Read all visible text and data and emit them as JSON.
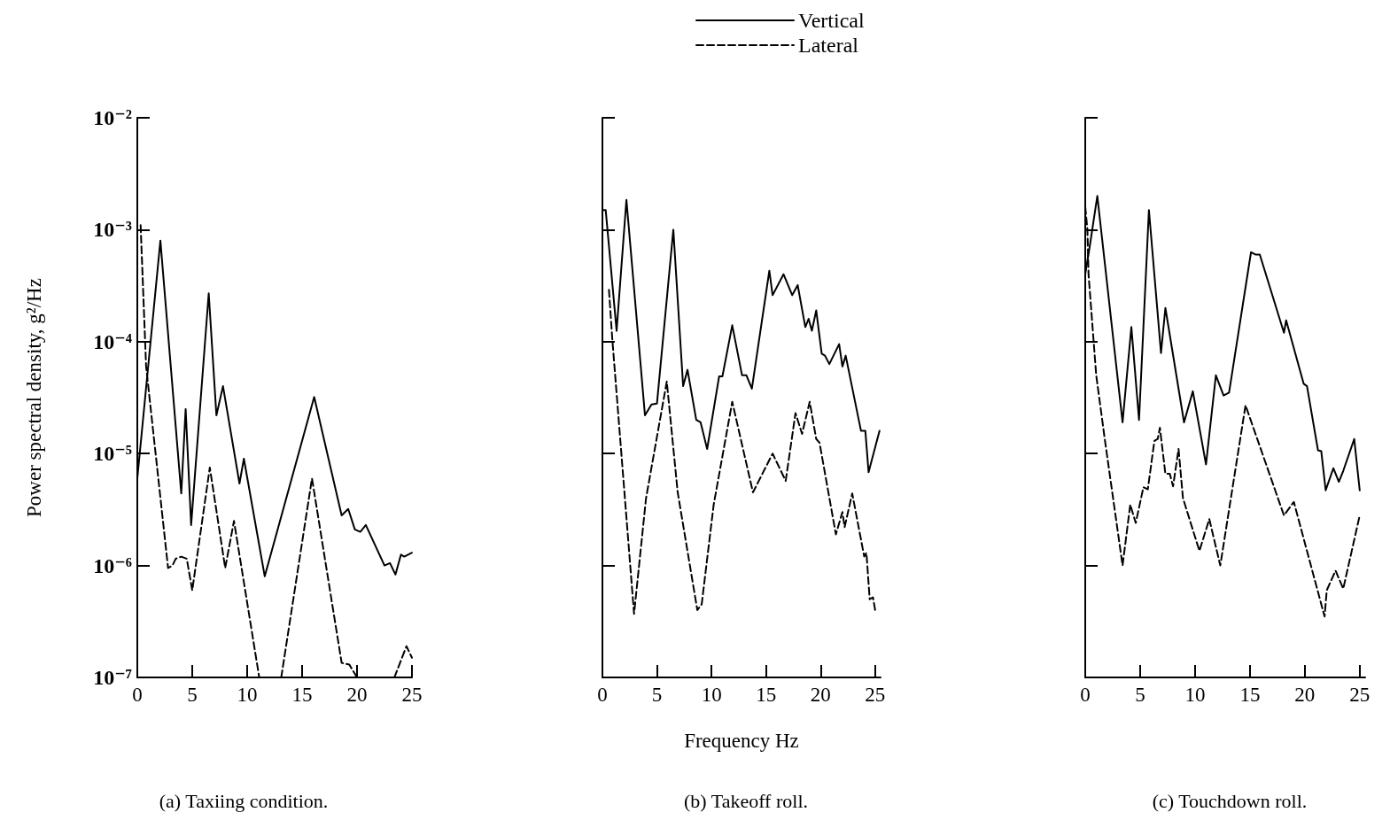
{
  "chart_data": [
    {
      "type": "line",
      "title": "(a) Taxiing condition.",
      "ylabel": "Power spectral density, g²/Hz",
      "log": "y",
      "grid": false,
      "legend": false,
      "marker": "none",
      "xlim": [
        0,
        25
      ],
      "xticks": [
        0,
        5,
        10,
        15,
        20,
        25
      ],
      "ylim": [
        1e-07,
        0.01
      ],
      "yticks": [
        {
          "value": 1e-07,
          "label": "10⁻⁷"
        },
        {
          "value": 1e-06,
          "label": "10⁻⁶"
        },
        {
          "value": 1e-05,
          "label": "10⁻⁵"
        },
        {
          "value": 0.0001,
          "label": "10⁻⁴"
        },
        {
          "value": 0.001,
          "label": "10⁻³"
        },
        {
          "value": 0.01,
          "label": "10⁻²"
        }
      ],
      "series": [
        {
          "color": "#000000",
          "line_style": "solid",
          "x": [
            0,
            2.1,
            4.0,
            4.4,
            4.9,
            6.5,
            7.2,
            7.8,
            9.3,
            9.7,
            11.6,
            16.1,
            18.6,
            19.2,
            19.8,
            20.3,
            20.8,
            22.5,
            23.0,
            23.5,
            24.0,
            24.3,
            25
          ],
          "values": [
            6e-06,
            0.0008,
            4.4e-06,
            2.5e-05,
            2.3e-06,
            0.00027,
            2.2e-05,
            4e-05,
            5.4e-06,
            9e-06,
            8e-07,
            3.2e-05,
            2.8e-06,
            3.2e-06,
            2.1e-06,
            2e-06,
            2.3e-06,
            1e-06,
            1.05e-06,
            8.3e-07,
            1.25e-06,
            1.2e-06,
            1.3e-06
          ]
        },
        {
          "color": "#000000",
          "line_style": "dashed",
          "x": [
            0.3,
            0.8,
            2.8,
            3.2,
            3.5,
            4.0,
            4.5,
            5.0,
            6.6,
            8.0,
            8.8,
            11.1,
            12,
            13.1,
            15.9,
            18.6,
            19.3,
            20,
            22,
            23.4,
            24.5,
            25
          ],
          "values": [
            0.0011,
            6e-05,
            9.5e-07,
            1e-06,
            1.15e-06,
            1.2e-06,
            1.15e-06,
            6e-07,
            7.5e-06,
            9.5e-07,
            2.5e-06,
            1e-07,
            null,
            1e-07,
            6e-06,
            1.35e-07,
            1.3e-07,
            1e-07,
            null,
            1e-07,
            1.9e-07,
            1.5e-07
          ]
        }
      ]
    },
    {
      "type": "line",
      "title": "(b) Takeoff roll.",
      "xlabel": "Frequency Hz",
      "log": "y",
      "grid": false,
      "legend": "top",
      "marker": "none",
      "tick_labels": "x",
      "xlim": [
        0,
        25.5
      ],
      "xticks": [
        0,
        5,
        10,
        15,
        20,
        25
      ],
      "ylim": [
        1e-07,
        0.01
      ],
      "yticks": [
        1e-07,
        1e-06,
        1e-05,
        0.0001,
        0.001,
        0.01
      ],
      "series": [
        {
          "name": "Vertical",
          "color": "#000000",
          "line_style": "solid",
          "x": [
            0,
            0.3,
            1.3,
            2.2,
            3.9,
            4.5,
            5.0,
            6.5,
            7.4,
            7.8,
            8.6,
            9.0,
            9.6,
            10.7,
            11.0,
            11.9,
            12.8,
            13.2,
            13.7,
            15.3,
            15.6,
            16.6,
            17.4,
            17.9,
            18.6,
            18.9,
            19.2,
            19.6,
            20.1,
            20.4,
            20.8,
            21.7,
            22.0,
            22.3,
            23.7,
            24.1,
            24.4,
            25.4
          ],
          "values": [
            0.0015,
            0.0015,
            0.000125,
            0.00185,
            2.2e-05,
            2.75e-05,
            2.8e-05,
            0.001,
            4e-05,
            5.6e-05,
            2e-05,
            1.9e-05,
            1.1e-05,
            4.9e-05,
            4.9e-05,
            0.00014,
            5e-05,
            5e-05,
            3.8e-05,
            0.00043,
            0.00026,
            0.0004,
            0.00026,
            0.00032,
            0.000135,
            0.00016,
            0.000125,
            0.00019,
            7.8e-05,
            7.5e-05,
            6.3e-05,
            9.5e-05,
            6e-05,
            7.5e-05,
            1.6e-05,
            1.6e-05,
            6.8e-06,
            1.6e-05
          ]
        },
        {
          "name": "Lateral",
          "color": "#000000",
          "line_style": "dashed",
          "x": [
            0.6,
            0.9,
            2.9,
            4.0,
            5.9,
            6.9,
            8.7,
            9.1,
            10.2,
            11.9,
            13.8,
            15.6,
            16.8,
            17.7,
            18.3,
            19.0,
            19.6,
            19.9,
            21.4,
            22.0,
            22.2,
            22.9,
            24.0,
            24.2,
            24.5,
            24.8,
            25.0
          ],
          "values": [
            0.00029,
            0.000107,
            3.7e-07,
            4e-06,
            4.4e-05,
            4.5e-06,
            4e-07,
            4.5e-07,
            3.5e-06,
            2.9e-05,
            4.5e-06,
            1e-05,
            5.7e-06,
            2.3e-05,
            1.5e-05,
            2.9e-05,
            1.35e-05,
            1.25e-05,
            1.9e-06,
            3e-06,
            2.2e-06,
            4.4e-06,
            1.2e-06,
            1.3e-06,
            5e-07,
            5.2e-07,
            4e-07
          ]
        }
      ]
    },
    {
      "type": "line",
      "title": "(c) Touchdown roll.",
      "log": "y",
      "grid": false,
      "legend": false,
      "marker": "none",
      "tick_labels": "x",
      "xlim": [
        0,
        25.5
      ],
      "xticks": [
        0,
        5,
        10,
        15,
        20,
        25
      ],
      "ylim": [
        1e-07,
        0.01
      ],
      "yticks": [
        1e-07,
        1e-06,
        1e-05,
        0.0001,
        0.001,
        0.01
      ],
      "series": [
        {
          "color": "#000000",
          "line_style": "solid",
          "x": [
            0,
            0.4,
            1.1,
            3.4,
            4.2,
            4.9,
            5.8,
            6.9,
            7.3,
            9.0,
            9.8,
            11.0,
            11.9,
            12.6,
            13.1,
            15.1,
            15.5,
            15.9,
            18.1,
            18.3,
            19.9,
            20.2,
            21.2,
            21.5,
            21.9,
            22.6,
            23.1,
            23.5,
            24.5,
            25
          ],
          "values": [
            0.0004,
            0.0007,
            0.002,
            1.9e-05,
            0.000135,
            2e-05,
            0.0015,
            7.9e-05,
            0.0002,
            1.9e-05,
            3.6e-05,
            8e-06,
            5e-05,
            3.3e-05,
            3.5e-05,
            0.00063,
            0.0006,
            0.0006,
            0.00012,
            0.000155,
            4.2e-05,
            4e-05,
            1.07e-05,
            1.05e-05,
            4.7e-06,
            7.4e-06,
            5.6e-06,
            7e-06,
            1.35e-05,
            4.7e-06
          ]
        },
        {
          "color": "#000000",
          "line_style": "dashed",
          "x": [
            0,
            0.2,
            0.3,
            1.0,
            1.8,
            3.4,
            4.1,
            4.3,
            4.6,
            5.3,
            5.7,
            6.3,
            6.6,
            6.8,
            7.3,
            7.7,
            8.0,
            8.5,
            8.9,
            10.4,
            11.3,
            12.3,
            14.6,
            18.1,
            19.0,
            21.8,
            22.0,
            22.8,
            23.5,
            25
          ],
          "values": [
            0.0016,
            0.001,
            0.0004,
            5e-05,
            1.3e-05,
            1e-06,
            3.5e-06,
            3e-06,
            2.4e-06,
            5e-06,
            4.8e-06,
            1.3e-05,
            1.35e-05,
            1.7e-05,
            6.6e-06,
            6.6e-06,
            5.1e-06,
            1.1e-05,
            4e-06,
            1.35e-06,
            2.6e-06,
            1e-06,
            2.7e-05,
            2.8e-06,
            3.7e-06,
            3.5e-07,
            6e-07,
            9e-07,
            6.2e-07,
            2.8e-06
          ]
        }
      ]
    }
  ]
}
